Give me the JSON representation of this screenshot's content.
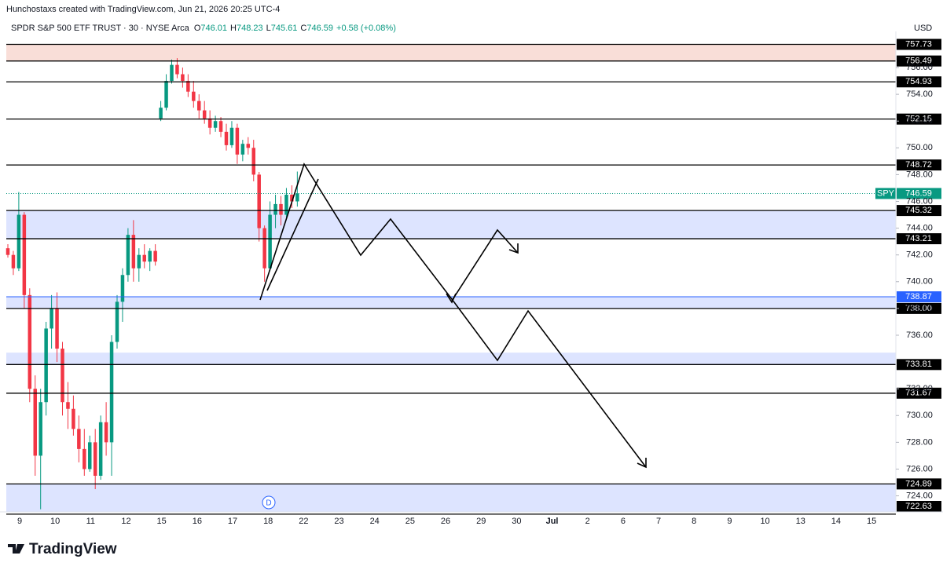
{
  "credit": "Hunchostaxs created with TradingView.com, Jun 21, 2026 20:25 UTC-4",
  "logo": "TradingView",
  "chart_data": {
    "type": "candlestick",
    "title": "SPDR S&P 500 ETF TRUST · 30 · NYSE Arca",
    "ohlc_labels": [
      "O",
      "H",
      "L",
      "C"
    ],
    "ohlc": [
      746.01,
      748.23,
      745.61,
      746.59
    ],
    "change": "+0.58 (+0.08%)",
    "currency": "USD",
    "up_color": "#089981",
    "down_color": "#f23645",
    "categories": [
      "9",
      "10",
      "11",
      "12",
      "15",
      "16",
      "17",
      "18",
      "22",
      "23",
      "24",
      "25",
      "26",
      "29",
      "30",
      "Jul",
      "2",
      "6",
      "7",
      "8",
      "9",
      "10",
      "13",
      "14",
      "15"
    ],
    "ylim": [
      722.8,
      758.7
    ],
    "yticks": [
      {
        "value": 724,
        "label": "724.00"
      },
      {
        "value": 726,
        "label": "726.00"
      },
      {
        "value": 728,
        "label": "728.00"
      },
      {
        "value": 730,
        "label": "730.00"
      },
      {
        "value": 732,
        "label": "732.00"
      },
      {
        "value": 736,
        "label": "736.00"
      },
      {
        "value": 738,
        "label": "738.00"
      },
      {
        "value": 740,
        "label": "740.00"
      },
      {
        "value": 742,
        "label": "742.00"
      },
      {
        "value": 744,
        "label": "744.00"
      },
      {
        "value": 746,
        "label": "746.00"
      },
      {
        "value": 748,
        "label": "748.00"
      },
      {
        "value": 750,
        "label": "750.00"
      },
      {
        "value": 752,
        "label": "752.00"
      },
      {
        "value": 754,
        "label": "754.00"
      },
      {
        "value": 756,
        "label": "756.00"
      }
    ],
    "candles": {
      "open": [
        742.5,
        742.0,
        741.0,
        745.0,
        739.0,
        732.0,
        727.0,
        731.0,
        736.5,
        738.0,
        735.0,
        731.0,
        730.5,
        729.0,
        727.5,
        726.0,
        728.0,
        725.5,
        729.5,
        728.0,
        735.5,
        738.5,
        740.5,
        743.5,
        741.0,
        742.0,
        741.5,
        742.3,
        752.2,
        753.0,
        755.0,
        756.2,
        755.5,
        755.0,
        754.2,
        753.5,
        752.8,
        752.2,
        751.5,
        752.0,
        751.2,
        750.2,
        751.5,
        749.5,
        750.3,
        750.0,
        748.0,
        744.0,
        741.0,
        745.0,
        745.8,
        745.0,
        746.5,
        746.0
      ],
      "high": [
        742.8,
        742.3,
        746.7,
        745.2,
        739.5,
        733.0,
        732.0,
        737.0,
        739.0,
        739.2,
        735.5,
        732.5,
        731.5,
        730.0,
        729.0,
        728.5,
        729.0,
        730.0,
        731.0,
        736.0,
        739.0,
        741.0,
        744.0,
        744.6,
        742.5,
        742.8,
        742.5,
        742.8,
        753.5,
        755.5,
        756.6,
        756.7,
        756.0,
        755.5,
        755.0,
        754.0,
        753.5,
        752.8,
        752.4,
        752.3,
        751.8,
        752.0,
        751.8,
        750.6,
        750.8,
        750.6,
        748.2,
        744.2,
        746.0,
        746.5,
        746.4,
        747.0,
        747.2,
        748.23
      ],
      "low": [
        741.8,
        740.5,
        740.8,
        738.0,
        731.0,
        725.5,
        723.0,
        730.0,
        735.0,
        734.0,
        730.0,
        729.0,
        728.5,
        726.5,
        725.5,
        725.8,
        724.5,
        725.2,
        727.0,
        725.5,
        735.0,
        737.0,
        740.0,
        740.0,
        740.0,
        741.0,
        740.8,
        741.2,
        752.0,
        752.8,
        754.8,
        755.2,
        754.5,
        753.8,
        753.0,
        752.2,
        751.8,
        751.0,
        751.2,
        750.8,
        749.8,
        750.0,
        748.8,
        749.0,
        749.5,
        747.5,
        743.0,
        740.0,
        740.8,
        744.0,
        744.2,
        744.8,
        745.5,
        745.61
      ],
      "close": [
        742.0,
        741.0,
        745.0,
        739.0,
        732.0,
        727.0,
        731.0,
        736.5,
        738.0,
        735.0,
        731.0,
        730.5,
        729.0,
        727.5,
        726.0,
        728.0,
        725.5,
        729.5,
        728.0,
        735.5,
        738.5,
        740.5,
        743.5,
        741.0,
        742.0,
        741.5,
        742.3,
        741.5,
        753.0,
        755.0,
        756.2,
        755.5,
        755.0,
        754.2,
        753.5,
        752.8,
        752.2,
        751.5,
        752.0,
        751.2,
        750.2,
        751.5,
        749.5,
        750.3,
        750.0,
        748.0,
        744.0,
        741.0,
        745.0,
        745.8,
        745.0,
        746.5,
        746.0,
        746.59
      ]
    },
    "levels": [
      {
        "price": 757.73,
        "color": "#000000"
      },
      {
        "price": 756.49,
        "color": "#000000"
      },
      {
        "price": 754.93,
        "color": "#000000"
      },
      {
        "price": 752.15,
        "color": "#000000"
      },
      {
        "price": 748.72,
        "color": "#000000"
      },
      {
        "price": 745.32,
        "color": "#000000"
      },
      {
        "price": 743.21,
        "color": "#000000"
      },
      {
        "price": 738.87,
        "color": "#2962ff"
      },
      {
        "price": {
          "value": 738,
          "label": "738.00"
        },
        "color": "#000000"
      },
      {
        "price": 733.81,
        "color": "#000000"
      },
      {
        "price": 731.67,
        "color": "#000000"
      },
      {
        "price": 724.89,
        "color": "#000000"
      },
      {
        "price": 722.63,
        "color": "#000000"
      }
    ],
    "zones": [
      {
        "from": 756.49,
        "to": 757.73,
        "color": "#f9ded8"
      },
      {
        "from": 743.21,
        "to": 745.32,
        "color": "#dde4ff"
      },
      {
        "from": 738,
        "to": 738.87,
        "color": "#dde4ff"
      },
      {
        "from": 733.81,
        "to": 734.7,
        "color": "#dde4ff"
      },
      {
        "from": 722.63,
        "to": 724.89,
        "color": "#dde4ff"
      }
    ],
    "last_price": {
      "label": "SPY",
      "value": 746.59,
      "color": "#089981"
    },
    "marker": "D"
  }
}
